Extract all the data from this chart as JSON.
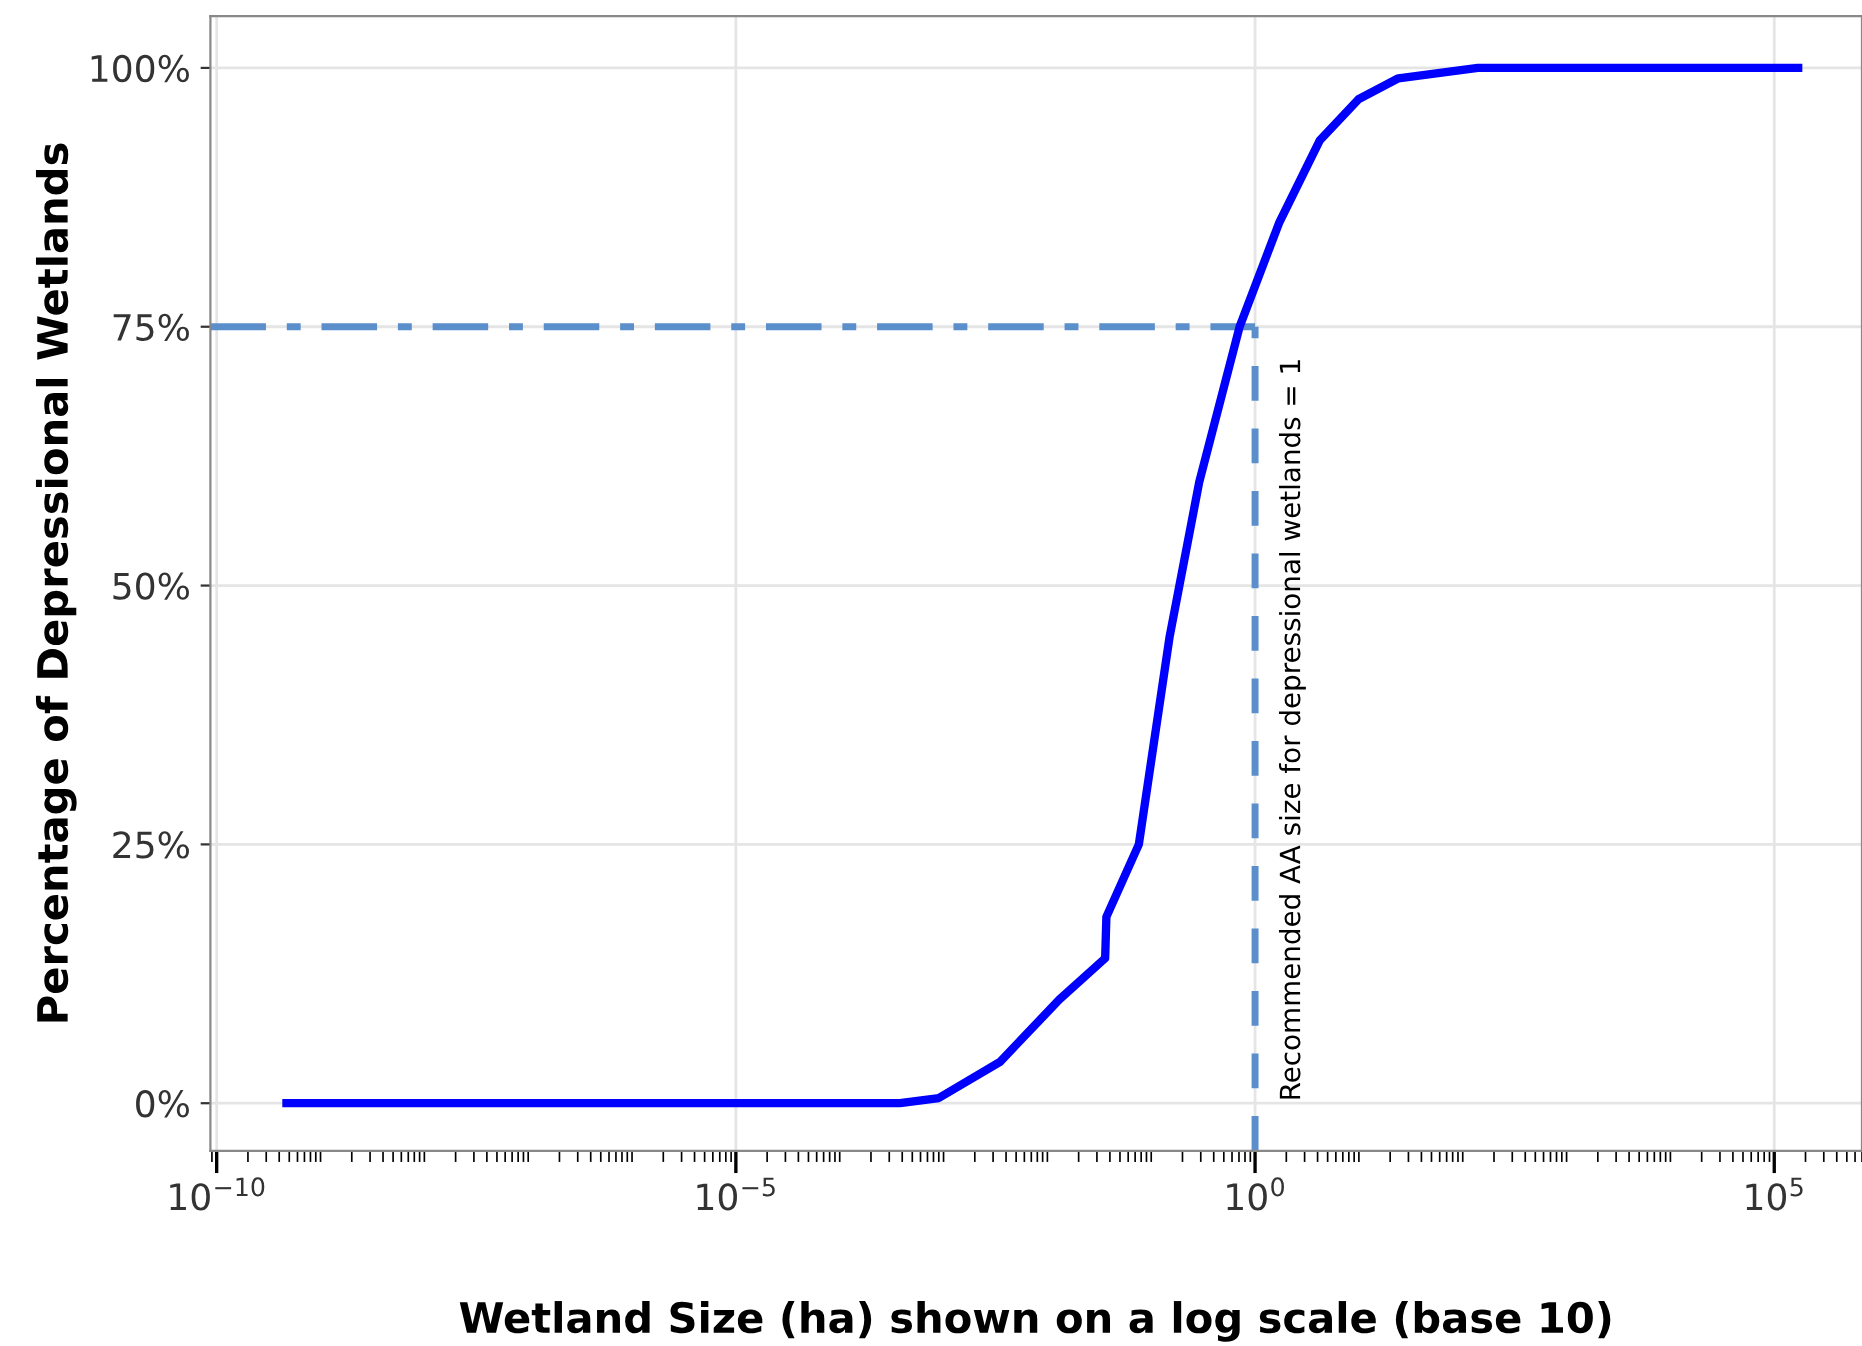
{
  "chart_data": {
    "type": "line",
    "xlabel": "Wetland Size (ha) shown on a log scale (base 10)",
    "ylabel": "Percentage of Depressional Wetlands",
    "log": "x",
    "x": [
      4.7e-10,
      1e-06,
      0.00038,
      0.0009,
      0.0035,
      0.013,
      0.036,
      0.037,
      0.076,
      0.15,
      0.29,
      0.71,
      1.7,
      4.2,
      10,
      24,
      140,
      170000
    ],
    "series": [
      {
        "color": "#0000ff",
        "values": [
          0,
          0,
          0,
          0.5,
          4,
          10,
          14,
          18,
          25,
          45,
          60,
          75,
          85,
          93,
          97,
          99,
          100,
          100
        ]
      }
    ],
    "xlim": [
      8.7e-11,
      700000
    ],
    "ylim": [
      -4.6,
      105
    ],
    "xticks": [
      {
        "value": 1e-10,
        "label": "10$^{−10}$"
      },
      {
        "value": 1e-05,
        "label": "10$^{−5}$"
      },
      {
        "value": 1,
        "label": "10$^{0}$"
      },
      {
        "value": 100000,
        "label": "10$^{5}$"
      }
    ],
    "yticks": [
      {
        "value": 0,
        "label": "0%"
      },
      {
        "value": 25,
        "label": "25%"
      },
      {
        "value": 50,
        "label": "50%"
      },
      {
        "value": 75,
        "label": "75%"
      },
      {
        "value": 100,
        "label": "100%"
      }
    ],
    "grid": true,
    "marker": "none",
    "line_style": "solid",
    "ref_lines": [
      {
        "axis": "y",
        "value": 75,
        "color": "#5b8fcc",
        "line_style": "dashdot"
      },
      {
        "axis": "x",
        "value": 1,
        "color": "#5b8fcc",
        "line_style": "dashed",
        "label": "Recommended AA size for depressional wetlands = 1"
      }
    ]
  }
}
